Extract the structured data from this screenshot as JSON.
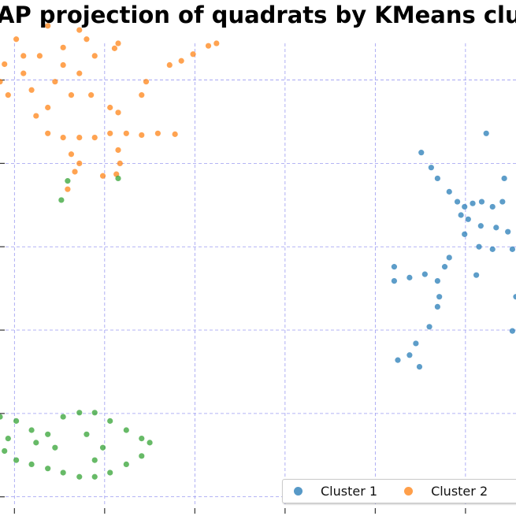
{
  "chart_data": {
    "type": "scatter",
    "title": "AP projection of quadrats by KMeans clus",
    "xlabel": "",
    "ylabel": "",
    "xlim": [
      -0.16,
      5.56
    ],
    "ylim": [
      -0.23,
      5.96
    ],
    "xticks": [
      0,
      1,
      2,
      3,
      4,
      5
    ],
    "yticks": [
      0,
      1,
      2,
      3,
      4,
      5
    ],
    "grid": true,
    "legend_placement": "bottom-right",
    "series": [
      {
        "name": "Cluster 1",
        "color": "#1f77b4",
        "points": [
          [
            5.23,
            4.36
          ],
          [
            4.51,
            4.13
          ],
          [
            4.62,
            3.95
          ],
          [
            4.69,
            3.82
          ],
          [
            4.82,
            3.66
          ],
          [
            4.91,
            3.54
          ],
          [
            4.99,
            3.48
          ],
          [
            5.08,
            3.52
          ],
          [
            5.18,
            3.54
          ],
          [
            5.3,
            3.48
          ],
          [
            5.43,
            3.82
          ],
          [
            5.41,
            3.54
          ],
          [
            5.03,
            3.33
          ],
          [
            5.17,
            3.25
          ],
          [
            5.34,
            3.23
          ],
          [
            5.47,
            3.18
          ],
          [
            4.99,
            3.15
          ],
          [
            5.15,
            3.0
          ],
          [
            4.82,
            2.87
          ],
          [
            4.77,
            2.76
          ],
          [
            5.12,
            2.66
          ],
          [
            5.52,
            2.97
          ],
          [
            5.56,
            2.4
          ],
          [
            4.21,
            2.76
          ],
          [
            4.21,
            2.59
          ],
          [
            4.38,
            2.63
          ],
          [
            4.55,
            2.67
          ],
          [
            4.69,
            2.59
          ],
          [
            4.71,
            2.4
          ],
          [
            4.69,
            2.28
          ],
          [
            4.6,
            2.04
          ],
          [
            4.45,
            1.84
          ],
          [
            4.38,
            1.7
          ],
          [
            4.25,
            1.64
          ],
          [
            4.49,
            1.56
          ],
          [
            5.52,
            1.99
          ],
          [
            5.3,
            2.97
          ],
          [
            4.95,
            3.38
          ]
        ]
      },
      {
        "name": "Cluster 2",
        "color": "#ff7f0e",
        "points": [
          [
            2.24,
            5.44
          ],
          [
            2.15,
            5.41
          ],
          [
            1.98,
            5.31
          ],
          [
            1.85,
            5.23
          ],
          [
            1.72,
            5.18
          ],
          [
            1.15,
            5.44
          ],
          [
            1.11,
            5.38
          ],
          [
            0.37,
            5.65
          ],
          [
            0.72,
            5.6
          ],
          [
            0.02,
            5.49
          ],
          [
            -0.11,
            5.19
          ],
          [
            -0.16,
            4.98
          ],
          [
            0.1,
            5.08
          ],
          [
            0.28,
            5.29
          ],
          [
            0.54,
            5.39
          ],
          [
            0.8,
            5.49
          ],
          [
            0.89,
            5.29
          ],
          [
            0.72,
            5.08
          ],
          [
            0.45,
            4.98
          ],
          [
            0.19,
            4.88
          ],
          [
            -0.07,
            4.82
          ],
          [
            0.85,
            4.82
          ],
          [
            0.37,
            4.67
          ],
          [
            0.24,
            4.57
          ],
          [
            1.06,
            4.67
          ],
          [
            1.46,
            4.98
          ],
          [
            1.41,
            4.82
          ],
          [
            1.15,
            4.61
          ],
          [
            0.37,
            4.36
          ],
          [
            0.54,
            4.31
          ],
          [
            0.72,
            4.31
          ],
          [
            0.89,
            4.31
          ],
          [
            1.06,
            4.36
          ],
          [
            1.24,
            4.36
          ],
          [
            1.41,
            4.34
          ],
          [
            1.59,
            4.36
          ],
          [
            1.78,
            4.35
          ],
          [
            0.63,
            4.11
          ],
          [
            0.72,
            4.0
          ],
          [
            0.67,
            3.9
          ],
          [
            0.59,
            3.69
          ],
          [
            1.15,
            4.16
          ],
          [
            1.17,
            4.0
          ],
          [
            1.13,
            3.87
          ],
          [
            0.98,
            3.85
          ],
          [
            0.54,
            5.18
          ],
          [
            0.1,
            5.29
          ],
          [
            0.63,
            4.82
          ]
        ]
      },
      {
        "color": "#2ca02c",
        "points": [
          [
            0.59,
            3.79
          ],
          [
            0.52,
            3.56
          ],
          [
            1.15,
            3.82
          ],
          [
            -0.16,
            0.96
          ],
          [
            0.02,
            0.91
          ],
          [
            0.19,
            0.8
          ],
          [
            0.37,
            0.75
          ],
          [
            0.54,
            0.96
          ],
          [
            0.72,
            1.01
          ],
          [
            0.89,
            1.01
          ],
          [
            1.06,
            0.91
          ],
          [
            1.24,
            0.8
          ],
          [
            1.41,
            0.7
          ],
          [
            1.5,
            0.65
          ],
          [
            1.41,
            0.49
          ],
          [
            1.24,
            0.39
          ],
          [
            1.06,
            0.29
          ],
          [
            0.89,
            0.24
          ],
          [
            0.72,
            0.24
          ],
          [
            0.54,
            0.29
          ],
          [
            0.37,
            0.34
          ],
          [
            0.19,
            0.39
          ],
          [
            0.02,
            0.44
          ],
          [
            -0.11,
            0.55
          ],
          [
            -0.07,
            0.7
          ],
          [
            0.89,
            0.44
          ],
          [
            0.98,
            0.59
          ],
          [
            0.45,
            0.59
          ],
          [
            0.24,
            0.65
          ],
          [
            0.8,
            0.75
          ]
        ]
      }
    ]
  },
  "legend": {
    "items": [
      {
        "label": "Cluster 1",
        "color": "#1f77b4"
      },
      {
        "label": "Cluster 2",
        "color": "#ff7f0e"
      }
    ]
  },
  "grid_color": "#9b9bf0"
}
